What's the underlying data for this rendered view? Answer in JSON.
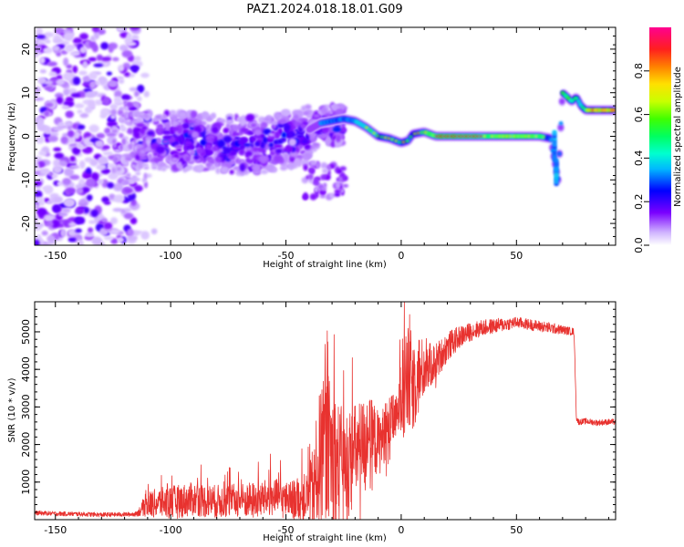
{
  "title": "PAZ1.2024.018.18.01.G09",
  "chart_data": [
    {
      "type": "heatmap",
      "title": "PAZ1.2024.018.18.01.G09",
      "xlabel": "Height of straight line (km)",
      "ylabel": "Frequency (Hz)",
      "xlim": [
        -159,
        93
      ],
      "ylim": [
        -25,
        25
      ],
      "xticks": [
        -150,
        -100,
        -50,
        0,
        50
      ],
      "yticks": [
        -20,
        -10,
        0,
        10,
        20
      ],
      "xtick_labels": [
        "-150",
        "-100",
        "-50",
        "0",
        "50"
      ],
      "ytick_labels": [
        "-20",
        "-10",
        "0",
        "10",
        "20"
      ],
      "colorbar": {
        "label": "Normalized spectral amplitude",
        "range": [
          0,
          1
        ],
        "ticks": [
          0.0,
          0.2,
          0.4,
          0.6,
          0.8
        ],
        "tick_labels": [
          "0.0",
          "0.2",
          "0.4",
          "0.6",
          "0.8"
        ],
        "colormap": "gist_ncar_r"
      },
      "ridge": {
        "x": [
          -160,
          -140,
          -120,
          -112,
          -100,
          -90,
          -80,
          -70,
          -60,
          -50,
          -40,
          -35,
          -30,
          -25,
          -20,
          -15,
          -10,
          -5,
          0,
          3,
          5,
          10,
          15,
          20,
          30,
          40,
          50,
          60,
          65,
          66,
          68,
          70,
          72,
          74,
          76,
          78,
          80,
          85,
          93
        ],
        "y": [
          0,
          0,
          0,
          0,
          0,
          0,
          -0.5,
          -1,
          -0.8,
          0,
          1.5,
          3,
          3.5,
          4,
          3.5,
          2,
          0,
          -0.5,
          -1.5,
          -1,
          0.5,
          1,
          0,
          0,
          0,
          0,
          0,
          0,
          -0.5,
          -4,
          -10,
          10,
          9,
          8,
          9,
          7,
          6,
          6,
          6
        ]
      },
      "regions": [
        {
          "x": [
            -159,
            -115
          ],
          "y": [
            -25,
            25
          ],
          "amplitude": 0.1,
          "description": "scattered weak"
        },
        {
          "x": [
            -115,
            -25
          ],
          "y": [
            -8,
            6
          ],
          "amplitude": 0.25,
          "description": "cluster"
        },
        {
          "x": [
            -25,
            93
          ],
          "y": [
            -1.5,
            1.5
          ],
          "amplitude": 0.5,
          "description": "ridge"
        }
      ]
    },
    {
      "type": "line",
      "xlabel": "Height of straight line (km)",
      "ylabel": "SNR (10 * v/v)",
      "xlim": [
        -159,
        93
      ],
      "ylim": [
        0,
        5800
      ],
      "xticks": [
        -150,
        -100,
        -50,
        0,
        50
      ],
      "yticks": [
        1000,
        2000,
        3000,
        4000,
        5000
      ],
      "xtick_labels": [
        "-150",
        "-100",
        "-50",
        "0",
        "50"
      ],
      "ytick_labels": [
        "1000",
        "2000",
        "3000",
        "4000",
        "5000"
      ],
      "color": "#e8322f",
      "series": [
        {
          "x": [
            -159,
            -150,
            -140,
            -130,
            -120,
            -115,
            -112,
            -110,
            -105,
            -100,
            -95,
            -90,
            -85,
            -80,
            -75,
            -70,
            -65,
            -60,
            -55,
            -50,
            -45,
            -40,
            -38,
            -35,
            -32,
            -30,
            -28,
            -25,
            -20,
            -15,
            -12,
            -10,
            -8,
            -5,
            -2,
            0,
            2,
            5,
            8,
            10,
            15,
            20,
            25,
            30,
            35,
            40,
            45,
            50,
            55,
            60,
            65,
            70,
            75,
            76,
            77,
            80,
            85,
            90,
            93
          ],
          "values": [
            180,
            160,
            150,
            130,
            140,
            150,
            300,
            400,
            450,
            450,
            500,
            550,
            500,
            480,
            500,
            520,
            500,
            550,
            600,
            500,
            550,
            600,
            900,
            1700,
            2000,
            1800,
            1500,
            1200,
            1800,
            2100,
            2200,
            2000,
            2200,
            2600,
            2700,
            3200,
            3500,
            3700,
            3900,
            4000,
            4200,
            4600,
            4850,
            5000,
            5100,
            5150,
            5200,
            5250,
            5200,
            5150,
            5100,
            5050,
            5000,
            2700,
            2600,
            2620,
            2580,
            2600,
            2600
          ],
          "noise_amplitude": [
            60,
            60,
            60,
            60,
            60,
            60,
            200,
            350,
            400,
            450,
            450,
            450,
            450,
            450,
            450,
            450,
            500,
            500,
            500,
            500,
            550,
            700,
            1200,
            1900,
            1900,
            1900,
            1800,
            1700,
            1300,
            1200,
            1000,
            900,
            800,
            700,
            600,
            900,
            1400,
            1400,
            1100,
            700,
            500,
            400,
            300,
            250,
            220,
            200,
            180,
            150,
            150,
            150,
            150,
            120,
            100,
            80,
            80,
            80,
            80,
            80,
            80
          ]
        }
      ]
    }
  ]
}
